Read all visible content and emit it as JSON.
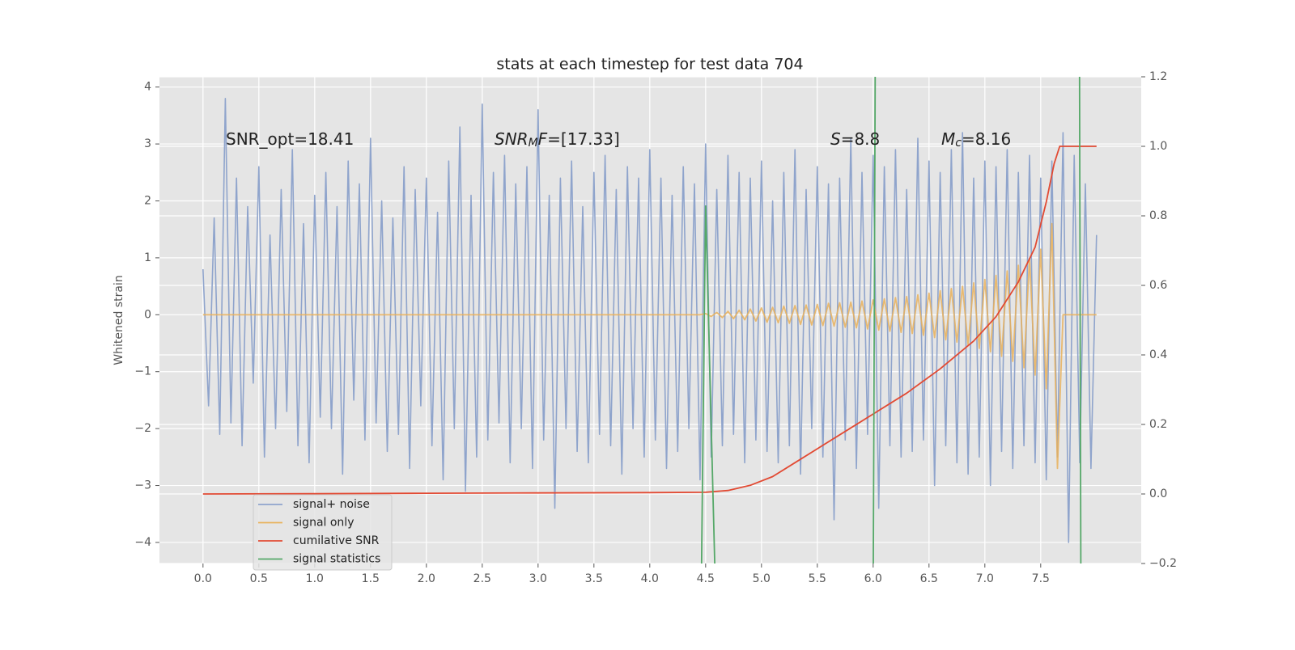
{
  "chart_data": {
    "type": "line",
    "title": "stats at each timestep for test data 704",
    "ylabel": "Whitened strain",
    "x": [
      0,
      0.05,
      0.1,
      0.15,
      0.2,
      0.25,
      0.3,
      0.35,
      0.4,
      0.45,
      0.5,
      0.55,
      0.6,
      0.65,
      0.7,
      0.75,
      0.8,
      0.85,
      0.9,
      0.95,
      1,
      1.05,
      1.1,
      1.15,
      1.2,
      1.25,
      1.3,
      1.35,
      1.4,
      1.45,
      1.5,
      1.55,
      1.6,
      1.65,
      1.7,
      1.75,
      1.8,
      1.85,
      1.9,
      1.95,
      2,
      2.05,
      2.1,
      2.15,
      2.2,
      2.25,
      2.3,
      2.35,
      2.4,
      2.45,
      2.5,
      2.55,
      2.6,
      2.65,
      2.7,
      2.75,
      2.8,
      2.85,
      2.9,
      2.95,
      3,
      3.05,
      3.1,
      3.15,
      3.2,
      3.25,
      3.3,
      3.35,
      3.4,
      3.45,
      3.5,
      3.55,
      3.6,
      3.65,
      3.7,
      3.75,
      3.8,
      3.85,
      3.9,
      3.95,
      4,
      4.05,
      4.1,
      4.15,
      4.2,
      4.25,
      4.3,
      4.35,
      4.4,
      4.45,
      4.5,
      4.55,
      4.6,
      4.65,
      4.7,
      4.75,
      4.8,
      4.85,
      4.9,
      4.95,
      5,
      5.05,
      5.1,
      5.15,
      5.2,
      5.25,
      5.3,
      5.35,
      5.4,
      5.45,
      5.5,
      5.55,
      5.6,
      5.65,
      5.7,
      5.75,
      5.8,
      5.85,
      5.9,
      5.95,
      6,
      6.05,
      6.1,
      6.15,
      6.2,
      6.25,
      6.3,
      6.35,
      6.4,
      6.45,
      6.5,
      6.55,
      6.6,
      6.65,
      6.7,
      6.75,
      6.8,
      6.85,
      6.9,
      6.95,
      7,
      7.05,
      7.1,
      7.15,
      7.2,
      7.25,
      7.3,
      7.35,
      7.4,
      7.45,
      7.5,
      7.55,
      7.6,
      7.65,
      7.7,
      7.75,
      7.8,
      7.85,
      7.9,
      7.95,
      8
    ],
    "xlim": [
      -0.39,
      8.4
    ],
    "xticks": [
      {
        "value": 0,
        "label": "0.0"
      },
      0.5,
      {
        "value": 1,
        "label": "1.0"
      },
      1.5,
      {
        "value": 2,
        "label": "2.0"
      },
      2.5,
      {
        "value": 3,
        "label": "3.0"
      },
      3.5,
      {
        "value": 4,
        "label": "4.0"
      },
      4.5,
      {
        "value": 5,
        "label": "5.0"
      },
      5.5,
      {
        "value": 6,
        "label": "6.0"
      },
      6.5,
      {
        "value": 7,
        "label": "7.0"
      },
      7.5
    ],
    "ylim": [
      -4.37,
      4.18
    ],
    "yticks": [
      {
        "value": -4,
        "label": "−4"
      },
      {
        "value": -3,
        "label": "−3"
      },
      {
        "value": -2,
        "label": "−2"
      },
      {
        "value": -1,
        "label": "−1"
      },
      0,
      1,
      2,
      3,
      4
    ],
    "y2lim": [
      -0.2,
      1.2
    ],
    "y2ticks": [
      {
        "value": -0.2,
        "label": "−0.2"
      },
      {
        "value": 0,
        "label": "0.0"
      },
      0.2,
      0.4,
      0.6,
      0.8,
      {
        "value": 1,
        "label": "1.0"
      },
      1.2
    ],
    "grid": true,
    "legend": "lower left",
    "annotations": [
      [
        {
          "text": "SNR_opt=18.41",
          "style": "normal"
        }
      ],
      [
        {
          "text": "SNR",
          "style": "italic"
        },
        {
          "text": "M",
          "style": "sub"
        },
        {
          "text": "F",
          "style": "italic"
        },
        {
          "text": "=[17.33]",
          "style": "normal"
        }
      ],
      [
        {
          "text": "S",
          "style": "italic"
        },
        {
          "text": "=8.8",
          "style": "normal"
        }
      ],
      [
        {
          "text": "M",
          "style": "italic"
        },
        {
          "text": "c",
          "style": "sub"
        },
        {
          "text": "=8.16",
          "style": "normal"
        }
      ]
    ],
    "series": [
      {
        "name": "signal+ noise",
        "color": "#8fa4cc",
        "values": [
          0.8,
          -1.6,
          1.7,
          -2.1,
          3.8,
          -1.9,
          2.4,
          -2.3,
          1.9,
          -1.2,
          2.6,
          -2.5,
          1.4,
          -2.0,
          2.2,
          -1.7,
          2.9,
          -2.3,
          1.6,
          -2.6,
          2.1,
          -1.8,
          2.5,
          -2.0,
          1.9,
          -2.8,
          2.7,
          -1.5,
          2.3,
          -2.2,
          3.1,
          -1.9,
          2.0,
          -2.4,
          1.7,
          -2.1,
          2.6,
          -2.7,
          2.2,
          -1.6,
          2.4,
          -2.3,
          1.8,
          -2.9,
          2.7,
          -2.0,
          3.3,
          -3.1,
          2.1,
          -2.5,
          3.7,
          -2.2,
          2.5,
          -1.9,
          2.8,
          -2.6,
          2.3,
          -2.0,
          2.6,
          -2.7,
          3.6,
          -2.2,
          2.1,
          -3.4,
          2.4,
          -2.0,
          2.7,
          -2.4,
          1.9,
          -2.6,
          2.5,
          -2.1,
          2.8,
          -2.3,
          2.2,
          -2.8,
          2.6,
          -2.0,
          2.4,
          -2.5,
          2.9,
          -2.2,
          2.4,
          -2.7,
          2.1,
          -2.4,
          2.6,
          -2.0,
          2.3,
          -2.9,
          3.0,
          -2.5,
          2.2,
          -2.3,
          2.8,
          -2.1,
          2.5,
          -2.6,
          2.4,
          -2.2,
          2.7,
          -2.4,
          2.0,
          -2.6,
          2.5,
          -2.3,
          2.9,
          -2.8,
          2.2,
          -2.0,
          2.6,
          -2.5,
          2.3,
          -3.6,
          2.4,
          -2.2,
          3.1,
          -2.7,
          2.5,
          -2.1,
          2.8,
          -3.4,
          2.6,
          -2.3,
          2.9,
          -2.5,
          2.2,
          -2.4,
          3.1,
          -2.2,
          2.7,
          -3.0,
          2.5,
          -2.3,
          2.9,
          -2.6,
          3.2,
          -2.8,
          2.4,
          -2.5,
          2.7,
          -3.0,
          2.6,
          -2.4,
          2.9,
          -2.7,
          2.5,
          -2.3,
          2.8,
          -2.6,
          2.4,
          -2.9,
          2.7,
          -2.5,
          3.2,
          -4.0,
          2.8,
          -2.6,
          2.3,
          -2.7,
          1.4
        ]
      },
      {
        "name": "signal only",
        "color": "#e9b25c",
        "values": [
          0,
          0,
          0,
          0,
          0,
          0,
          0,
          0,
          0,
          0,
          0,
          0,
          0,
          0,
          0,
          0,
          0,
          0,
          0,
          0,
          0,
          0,
          0,
          0,
          0,
          0,
          0,
          0,
          0,
          0,
          0,
          0,
          0,
          0,
          0,
          0,
          0,
          0,
          0,
          0,
          0,
          0,
          0,
          0,
          0,
          0,
          0,
          0,
          0,
          0,
          0,
          0,
          0,
          0,
          0,
          0,
          0,
          0,
          0,
          0,
          0,
          0,
          0,
          0,
          0,
          0,
          0,
          0,
          0,
          0,
          0,
          0,
          0,
          0,
          0,
          0,
          0,
          0,
          0,
          0,
          0,
          0,
          0,
          0,
          0,
          0,
          0,
          0,
          0,
          0,
          0.02,
          -0.03,
          0.04,
          -0.05,
          0.06,
          -0.07,
          0.08,
          -0.09,
          0.1,
          -0.11,
          0.12,
          -0.13,
          0.13,
          -0.14,
          0.15,
          -0.15,
          0.16,
          -0.17,
          0.17,
          -0.18,
          0.18,
          -0.19,
          0.2,
          -0.2,
          0.21,
          -0.22,
          0.22,
          -0.23,
          0.24,
          -0.25,
          0.26,
          -0.27,
          0.28,
          -0.29,
          0.3,
          -0.31,
          0.32,
          -0.33,
          0.35,
          -0.36,
          0.38,
          -0.4,
          0.42,
          -0.44,
          0.46,
          -0.48,
          0.5,
          -0.53,
          0.56,
          -0.59,
          0.62,
          -0.65,
          0.69,
          -0.73,
          0.77,
          -0.82,
          0.87,
          -0.93,
          0.99,
          -1.06,
          1.15,
          -1.3,
          1.6,
          -2.7,
          0,
          0,
          0,
          0,
          0,
          0,
          0
        ]
      },
      {
        "name": "cumilative SNR",
        "color": "#e24a33",
        "axis": "y2",
        "x": [
          0,
          1,
          2,
          3,
          4,
          4.5,
          4.7,
          4.9,
          5.1,
          5.3,
          5.5,
          5.8,
          6.0,
          6.3,
          6.6,
          6.9,
          7.1,
          7.3,
          7.45,
          7.55,
          7.62,
          7.67,
          7.7,
          8.0
        ],
        "values": [
          0,
          0.001,
          0.002,
          0.003,
          0.004,
          0.005,
          0.01,
          0.025,
          0.05,
          0.09,
          0.13,
          0.19,
          0.23,
          0.29,
          0.36,
          0.44,
          0.51,
          0.61,
          0.71,
          0.84,
          0.95,
          1.0,
          1.0,
          1.0
        ]
      },
      {
        "name": "signal statistics",
        "color": "#55a868",
        "x": [
          4.46,
          4.5,
          4.59,
          6.0,
          6.03,
          7.84,
          7.86
        ],
        "values": [
          -5,
          1.91,
          -5,
          -5,
          10,
          10,
          -5
        ]
      }
    ]
  }
}
